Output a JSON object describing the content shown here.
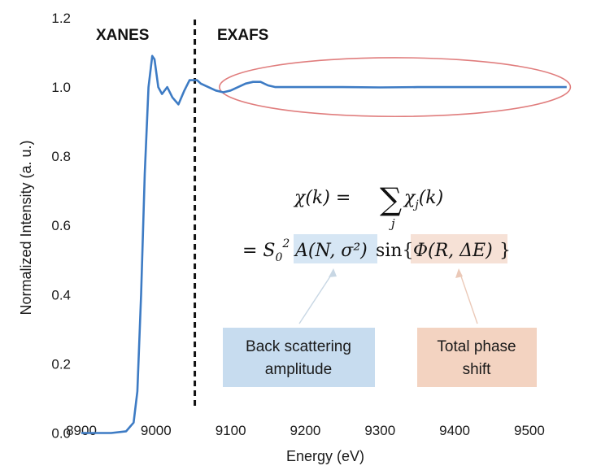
{
  "chart_data": {
    "type": "line",
    "xlabel": "Energy (eV)",
    "ylabel": "Normalized Intensity (a. u.)",
    "xlim": [
      8900,
      9560
    ],
    "ylim": [
      -0.02,
      1.2
    ],
    "x_ticks": [
      "8900",
      "9000",
      "9100",
      "9200",
      "9300",
      "9400",
      "9500"
    ],
    "y_ticks": [
      "0.0",
      "0.2",
      "0.4",
      "0.6",
      "0.8",
      "1.0",
      "1.2"
    ],
    "x_tick_values": [
      8900,
      9000,
      9100,
      9200,
      9300,
      9400,
      9500
    ],
    "y_tick_values": [
      0.0,
      0.2,
      0.4,
      0.6,
      0.8,
      1.0,
      1.2
    ],
    "series": [
      {
        "color": "#3d7bc4",
        "x": [
          8900,
          8940,
          8960,
          8970,
          8975,
          8980,
          8985,
          8990,
          8995,
          8998,
          9003,
          9008,
          9015,
          9022,
          9030,
          9038,
          9045,
          9050,
          9055,
          9060,
          9070,
          9080,
          9090,
          9100,
          9110,
          9120,
          9130,
          9140,
          9150,
          9160,
          9170,
          9200,
          9250,
          9300,
          9350,
          9400,
          9450,
          9500,
          9550
        ],
        "y": [
          0.0,
          0.0,
          0.005,
          0.03,
          0.12,
          0.4,
          0.75,
          1.0,
          1.09,
          1.08,
          1.0,
          0.98,
          1.0,
          0.97,
          0.95,
          0.99,
          1.02,
          1.02,
          1.02,
          1.01,
          1.0,
          0.99,
          0.985,
          0.99,
          1.0,
          1.01,
          1.015,
          1.015,
          1.005,
          1.0,
          1.0,
          1.0,
          1.0,
          0.999,
          1.0,
          1.0,
          1.0,
          1.0,
          1.0
        ]
      }
    ],
    "regions": {
      "divider_x": 9052,
      "left_label": "XANES",
      "right_label": "EXAFS"
    },
    "ellipse": {
      "cx": 9320,
      "cy": 1.0,
      "rx": 235,
      "ry": 0.085,
      "color": "#e07d7d"
    },
    "equation": {
      "line1_lhs": "χ(k) = ",
      "line1_sum": "∑",
      "line1_sub": "j",
      "line1_rhs": "χ",
      "line1_rhs_sub": "j",
      "line1_rhs_arg": "(k)",
      "line2_prefix": "= S",
      "line2_sub": "0",
      "line2_sup": "2",
      "line2_amp": "A(N, σ²)",
      "line2_sin": " sin{",
      "line2_phase": "Φ(R, ΔE)",
      "line2_close": "}"
    },
    "callouts": {
      "amplitude": {
        "lines": [
          "Back scattering",
          "amplitude"
        ],
        "fill": "#c7dcef",
        "highlight": "#d6e6f4"
      },
      "phase": {
        "lines": [
          "Total phase",
          "shift"
        ],
        "fill": "#f3d3c1",
        "highlight": "#f6e1d6"
      }
    }
  }
}
